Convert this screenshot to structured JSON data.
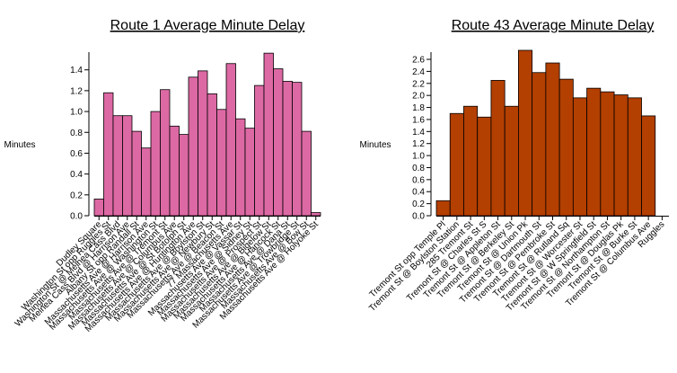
{
  "chart_data": [
    {
      "type": "bar",
      "title": "Route 1 Average Minute Delay",
      "y_label": "Minutes",
      "color": "#dc69a4",
      "categories": [
        "Dudley Square",
        "Washington St opp Ruggles St",
        "Washington St @ Melnea Cass Blvd",
        "Melnea Cass Blvd @ Harrison Ave",
        "Albany St opp Randall St",
        "Massachusetts Ave @ Harrison Ave",
        "Massachusetts Ave @ Washington St",
        "Massachusetts Ave @ Tremont St",
        "Massachusetts Ave @ Columbus Ave",
        "Massachusetts Ave @ St Botolph St",
        "Massachusetts Ave @ Huntington Ave",
        "Massachusetts Ave @ Boylston St",
        "Massachusetts Ave @ Newbury St",
        "Massachusetts Ave @ Beacon St",
        "77 Massachusetts Ave",
        "Massachusetts Ave @ Vassar St",
        "Massachusetts Ave @ Sidney St",
        "Massachusetts Ave @ Prospect St",
        "Massachusetts Ave @ Bigelow St",
        "Massachusetts Ave @ Hancock St",
        "Massachusetts Ave @ Dana St",
        "Massachusetts Ave @ Trowbridge St",
        "Massachusetts Ave @ Bow St",
        "Massachusetts Ave @ Holyoke St"
      ],
      "values": [
        0.16,
        1.18,
        0.96,
        0.96,
        0.81,
        0.65,
        1.0,
        1.21,
        0.86,
        0.78,
        1.33,
        1.39,
        1.17,
        1.02,
        1.46,
        0.93,
        0.84,
        1.25,
        1.56,
        1.41,
        1.29,
        1.28,
        0.81,
        0.03
      ],
      "ylim": [
        0,
        1.57
      ],
      "yticks": [
        {
          "value": 0,
          "label": "0.0"
        },
        0.2,
        0.4,
        0.6,
        0.8,
        {
          "value": 1,
          "label": "1.0"
        },
        1.2,
        1.4
      ]
    },
    {
      "type": "bar",
      "title": "Route 43 Average Minute Delay",
      "y_label": "Minutes",
      "color": "#b33f00",
      "categories": [
        "Tremont St opp Temple Pl",
        "Tremont St @ Boylston Station",
        "285 Tremont St",
        "Tremont St @ Charles St S",
        "Tremont St @ Appleton St",
        "Tremont St @ Berkeley St",
        "Tremont St @ Union Pk",
        "Tremont St @ Dartmouth St",
        "Tremont St @ Pembroke St",
        "Tremont St @ Rutland Sq",
        "Tremont St @ Worcester St",
        "Tremont St @ W Springfield St",
        "Tremont St @ Northampton St",
        "Tremont St @ Douglas Pk",
        "Tremont St @ Burke St",
        "Tremont St @ Columbus Ave",
        "Ruggles"
      ],
      "values": [
        0.25,
        1.7,
        1.82,
        1.64,
        2.25,
        1.82,
        2.75,
        2.38,
        2.54,
        2.27,
        1.96,
        2.12,
        2.06,
        2.01,
        1.96,
        1.66,
        null
      ],
      "ylim": [
        0,
        2.72
      ],
      "yticks": [
        {
          "value": 0,
          "label": "0.0"
        },
        0.2,
        0.4,
        0.6,
        0.8,
        {
          "value": 1,
          "label": "1.0"
        },
        1.2,
        1.4,
        1.6,
        1.8,
        {
          "value": 2,
          "label": "2.0"
        },
        2.2,
        2.4,
        2.6
      ]
    }
  ]
}
